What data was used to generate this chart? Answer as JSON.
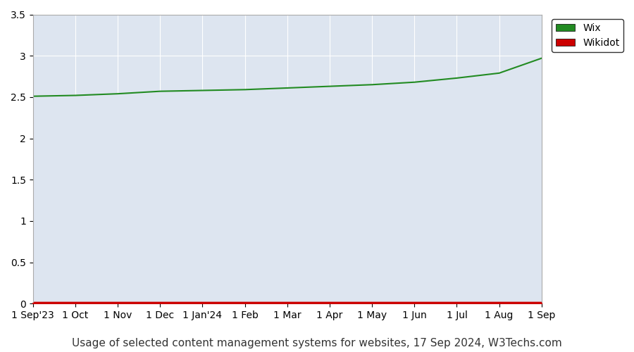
{
  "title": "Usage of selected content management systems for websites, 17 Sep 2024, W3Techs.com",
  "plot_bg_color": "#dde5f0",
  "outer_bg_color": "#ffffff",
  "wix_color": "#228B22",
  "wikidot_color": "#cc0000",
  "ylim": [
    0,
    3.5
  ],
  "yticks": [
    0,
    0.5,
    1.0,
    1.5,
    2.0,
    2.5,
    3.0,
    3.5
  ],
  "x_labels": [
    "1 Sep'23",
    "1 Oct",
    "1 Nov",
    "1 Dec",
    "1 Jan'24",
    "1 Feb",
    "1 Mar",
    "1 Apr",
    "1 May",
    "1 Jun",
    "1 Jul",
    "1 Aug",
    "1 Sep"
  ],
  "wix_values": [
    2.51,
    2.52,
    2.54,
    2.57,
    2.58,
    2.59,
    2.61,
    2.63,
    2.65,
    2.68,
    2.73,
    2.79,
    2.97
  ],
  "wikidot_values": [
    0.02,
    0.02,
    0.02,
    0.02,
    0.02,
    0.02,
    0.02,
    0.02,
    0.02,
    0.02,
    0.02,
    0.02,
    0.02
  ],
  "legend_labels": [
    "Wix",
    "Wikidot"
  ],
  "legend_colors": [
    "#228B22",
    "#cc0000"
  ],
  "grid_color": "#ffffff",
  "tick_label_fontsize": 10,
  "title_fontsize": 11
}
